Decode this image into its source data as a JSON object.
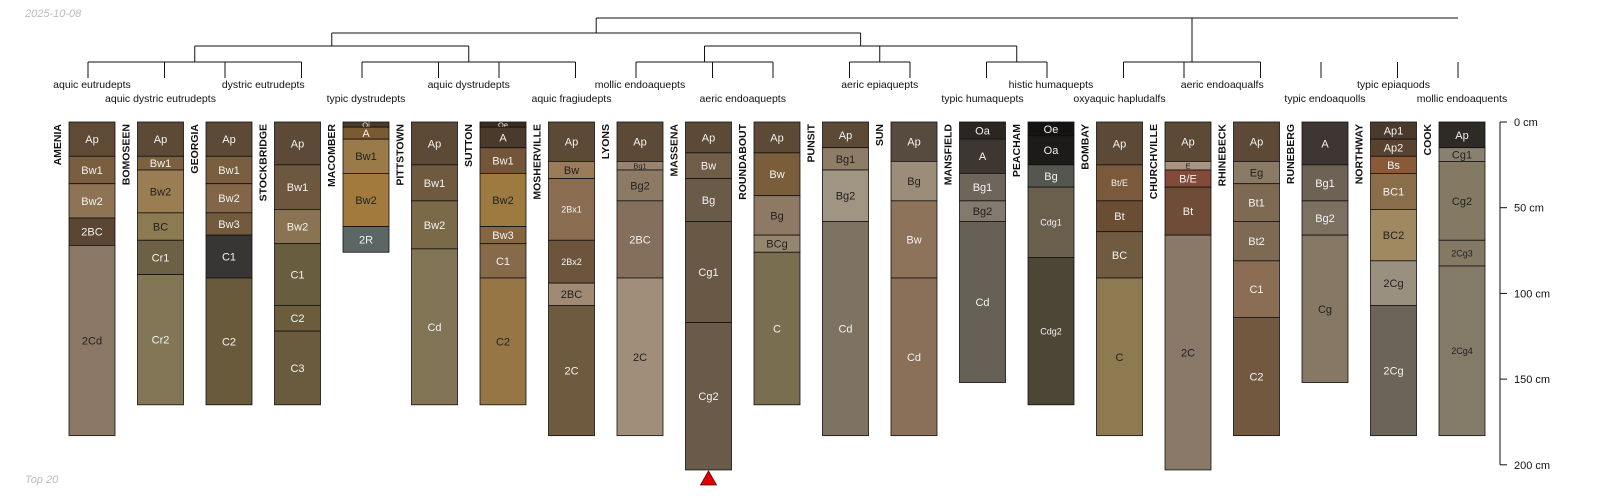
{
  "header": {
    "date": "2025-10-08"
  },
  "footer": {
    "note": "Top 20"
  },
  "chart_data": {
    "type": "soil-profile-sketch",
    "depth_unit": "cm",
    "depth_axis": {
      "range": [
        0,
        200
      ],
      "ticks": [
        0,
        50,
        100,
        150,
        200
      ],
      "tick_labels": [
        "0 cm",
        "50 cm",
        "100 cm",
        "150 cm",
        "200 cm"
      ]
    },
    "truncated_marker": {
      "profile": "MASSENA",
      "color": "#e00000"
    },
    "profiles": [
      {
        "name": "AMENIA",
        "class": "aquic eutrudepts",
        "horizons": [
          {
            "name": "Ap",
            "top": 0,
            "bottom": 20,
            "color": "#5e4a35"
          },
          {
            "name": "Bw1",
            "top": 20,
            "bottom": 36,
            "color": "#7a5e40"
          },
          {
            "name": "Bw2",
            "top": 36,
            "bottom": 56,
            "color": "#8e7355"
          },
          {
            "name": "2BC",
            "top": 56,
            "bottom": 72,
            "color": "#5a4632"
          },
          {
            "name": "2Cd",
            "top": 72,
            "bottom": 183,
            "color": "#8a7765"
          }
        ]
      },
      {
        "name": "BOMOSEEN",
        "class": "aquic dystric eutrudepts",
        "horizons": [
          {
            "name": "Ap",
            "top": 0,
            "bottom": 20,
            "color": "#5c4a36"
          },
          {
            "name": "Bw1",
            "top": 20,
            "bottom": 28,
            "color": "#7c603f"
          },
          {
            "name": "Bw2",
            "top": 28,
            "bottom": 53,
            "color": "#9a7d52"
          },
          {
            "name": "BC",
            "top": 53,
            "bottom": 69,
            "color": "#8c7a50"
          },
          {
            "name": "Cr1",
            "top": 69,
            "bottom": 89,
            "color": "#6c6045"
          },
          {
            "name": "Cr2",
            "top": 89,
            "bottom": 165,
            "color": "#837656"
          }
        ]
      },
      {
        "name": "GEORGIA",
        "class": "dystric eutrudepts",
        "horizons": [
          {
            "name": "Ap",
            "top": 0,
            "bottom": 20,
            "color": "#5c4a36"
          },
          {
            "name": "Bw1",
            "top": 20,
            "bottom": 36,
            "color": "#7a5e40"
          },
          {
            "name": "Bw2",
            "top": 36,
            "bottom": 53,
            "color": "#836648"
          },
          {
            "name": "Bw3",
            "top": 53,
            "bottom": 66,
            "color": "#745a3c"
          },
          {
            "name": "C1",
            "top": 66,
            "bottom": 91,
            "color": "#383635"
          },
          {
            "name": "C2",
            "top": 91,
            "bottom": 165,
            "color": "#6a5a3c"
          }
        ]
      },
      {
        "name": "STOCKBRIDGE",
        "class": "dystric eutrudepts",
        "horizons": [
          {
            "name": "Ap",
            "top": 0,
            "bottom": 25,
            "color": "#5c4a36"
          },
          {
            "name": "Bw1",
            "top": 25,
            "bottom": 51,
            "color": "#6d583f"
          },
          {
            "name": "Bw2",
            "top": 51,
            "bottom": 71,
            "color": "#8a7350"
          },
          {
            "name": "C1",
            "top": 71,
            "bottom": 107,
            "color": "#695d40"
          },
          {
            "name": "C2",
            "top": 107,
            "bottom": 122,
            "color": "#6b5c3e"
          },
          {
            "name": "C3",
            "top": 122,
            "bottom": 165,
            "color": "#6a5b3e"
          }
        ]
      },
      {
        "name": "MACOMBER",
        "class": "typic dystrudepts",
        "horizons": [
          {
            "name": "Oi",
            "top": 0,
            "bottom": 3,
            "color": "#4a3a2a"
          },
          {
            "name": "A",
            "top": 3,
            "bottom": 10,
            "color": "#7a5a30"
          },
          {
            "name": "Bw1",
            "top": 10,
            "bottom": 30,
            "color": "#9a7a48"
          },
          {
            "name": "Bw2",
            "top": 30,
            "bottom": 61,
            "color": "#a37a3d"
          },
          {
            "name": "2R",
            "top": 61,
            "bottom": 76,
            "color": "#5c6664"
          }
        ]
      },
      {
        "name": "PITTSTOWN",
        "class": "aquic dystrudepts",
        "horizons": [
          {
            "name": "Ap",
            "top": 0,
            "bottom": 25,
            "color": "#5c4a36"
          },
          {
            "name": "Bw1",
            "top": 25,
            "bottom": 46,
            "color": "#6f5a3f"
          },
          {
            "name": "Bw2",
            "top": 46,
            "bottom": 74,
            "color": "#7b6a48"
          },
          {
            "name": "Cd",
            "top": 74,
            "bottom": 165,
            "color": "#827556"
          }
        ]
      },
      {
        "name": "SUTTON",
        "class": "aquic dystrudepts",
        "horizons": [
          {
            "name": "Oe",
            "top": 0,
            "bottom": 3,
            "color": "#3a2e24"
          },
          {
            "name": "A",
            "top": 3,
            "bottom": 15,
            "color": "#4a3a2c"
          },
          {
            "name": "Bw1",
            "top": 15,
            "bottom": 30,
            "color": "#74553a"
          },
          {
            "name": "Bw2",
            "top": 30,
            "bottom": 61,
            "color": "#9c7a40"
          },
          {
            "name": "Bw3",
            "top": 61,
            "bottom": 71,
            "color": "#866543"
          },
          {
            "name": "C1",
            "top": 71,
            "bottom": 91,
            "color": "#866a4a"
          },
          {
            "name": "C2",
            "top": 91,
            "bottom": 165,
            "color": "#957644"
          }
        ]
      },
      {
        "name": "MOSHERVILLE",
        "class": "aquic fragiudepts",
        "horizons": [
          {
            "name": "Ap",
            "top": 0,
            "bottom": 23,
            "color": "#5c4a36"
          },
          {
            "name": "Bw",
            "top": 23,
            "bottom": 33,
            "color": "#9a7c58"
          },
          {
            "name": "2Bx1",
            "top": 33,
            "bottom": 69,
            "color": "#8a6d50"
          },
          {
            "name": "2Bx2",
            "top": 69,
            "bottom": 94,
            "color": "#6d553d"
          },
          {
            "name": "2BC",
            "top": 94,
            "bottom": 107,
            "color": "#a08a74"
          },
          {
            "name": "2C",
            "top": 107,
            "bottom": 183,
            "color": "#6e5a3e"
          }
        ]
      },
      {
        "name": "LYONS",
        "class": "mollic endoaquepts",
        "horizons": [
          {
            "name": "Ap",
            "top": 0,
            "bottom": 23,
            "color": "#5c4a36"
          },
          {
            "name": "Bg1",
            "top": 23,
            "bottom": 28,
            "color": "#9a8470"
          },
          {
            "name": "Bg2",
            "top": 28,
            "bottom": 46,
            "color": "#8c7a64"
          },
          {
            "name": "2BC",
            "top": 46,
            "bottom": 91,
            "color": "#846e5c"
          },
          {
            "name": "2C",
            "top": 91,
            "bottom": 183,
            "color": "#a08e7a"
          }
        ]
      },
      {
        "name": "MASSENA",
        "class": "aeric endoaquepts",
        "horizons": [
          {
            "name": "Ap",
            "top": 0,
            "bottom": 18,
            "color": "#5c4a36"
          },
          {
            "name": "Bw",
            "top": 18,
            "bottom": 33,
            "color": "#705d48"
          },
          {
            "name": "Bg",
            "top": 33,
            "bottom": 58,
            "color": "#6a5a48"
          },
          {
            "name": "Cg1",
            "top": 58,
            "bottom": 117,
            "color": "#6a5846"
          },
          {
            "name": "Cg2",
            "top": 117,
            "bottom": 203,
            "color": "#6a5a4a"
          }
        ]
      },
      {
        "name": "ROUNDABOUT",
        "class": "aeric endoaquepts",
        "horizons": [
          {
            "name": "Ap",
            "top": 0,
            "bottom": 18,
            "color": "#5c4a36"
          },
          {
            "name": "Bw",
            "top": 18,
            "bottom": 43,
            "color": "#7a5e3c"
          },
          {
            "name": "Bg",
            "top": 43,
            "bottom": 66,
            "color": "#8e7a64"
          },
          {
            "name": "BCg",
            "top": 66,
            "bottom": 76,
            "color": "#958670"
          },
          {
            "name": "C",
            "top": 76,
            "bottom": 165,
            "color": "#7a6e50"
          }
        ]
      },
      {
        "name": "PUNSIT",
        "class": "aeric epiaquepts",
        "horizons": [
          {
            "name": "Ap",
            "top": 0,
            "bottom": 15,
            "color": "#5c4a36"
          },
          {
            "name": "Bg1",
            "top": 15,
            "bottom": 28,
            "color": "#8e7c66"
          },
          {
            "name": "Bg2",
            "top": 28,
            "bottom": 58,
            "color": "#a09482"
          },
          {
            "name": "Cd",
            "top": 58,
            "bottom": 183,
            "color": "#7e7262"
          }
        ]
      },
      {
        "name": "SUN",
        "class": "aeric epiaquepts",
        "horizons": [
          {
            "name": "Ap",
            "top": 0,
            "bottom": 23,
            "color": "#574a3e"
          },
          {
            "name": "Bg",
            "top": 23,
            "bottom": 46,
            "color": "#9c8c7a"
          },
          {
            "name": "Bw",
            "top": 46,
            "bottom": 91,
            "color": "#8c735a"
          },
          {
            "name": "Cd",
            "top": 91,
            "bottom": 183,
            "color": "#8a7058"
          }
        ]
      },
      {
        "name": "MANSFIELD",
        "class": "typic humaquepts",
        "horizons": [
          {
            "name": "Oa",
            "top": 0,
            "bottom": 10,
            "color": "#2a2622"
          },
          {
            "name": "A",
            "top": 10,
            "bottom": 30,
            "color": "#3e3630"
          },
          {
            "name": "Bg1",
            "top": 30,
            "bottom": 46,
            "color": "#6e665a"
          },
          {
            "name": "Bg2",
            "top": 46,
            "bottom": 58,
            "color": "#827a6e"
          },
          {
            "name": "Cd",
            "top": 58,
            "bottom": 152,
            "color": "#666056"
          }
        ]
      },
      {
        "name": "PEACHAM",
        "class": "histic humaquepts",
        "horizons": [
          {
            "name": "Oe",
            "top": 0,
            "bottom": 8,
            "color": "#151311"
          },
          {
            "name": "Oa",
            "top": 8,
            "bottom": 25,
            "color": "#1d1b19"
          },
          {
            "name": "Bg",
            "top": 25,
            "bottom": 38,
            "color": "#55564f"
          },
          {
            "name": "Cdg1",
            "top": 38,
            "bottom": 79,
            "color": "#6a5e4c"
          },
          {
            "name": "Cdg2",
            "top": 79,
            "bottom": 165,
            "color": "#4c4636"
          }
        ]
      },
      {
        "name": "BOMBAY",
        "class": "oxyaquic hapludalfs",
        "horizons": [
          {
            "name": "Ap",
            "top": 0,
            "bottom": 25,
            "color": "#5c4a36"
          },
          {
            "name": "Bt/E",
            "top": 25,
            "bottom": 46,
            "color": "#7a5a3a"
          },
          {
            "name": "Bt",
            "top": 46,
            "bottom": 64,
            "color": "#6a4d32"
          },
          {
            "name": "BC",
            "top": 64,
            "bottom": 91,
            "color": "#705a40"
          },
          {
            "name": "C",
            "top": 91,
            "bottom": 183,
            "color": "#8e7a50"
          }
        ]
      },
      {
        "name": "CHURCHVILLE",
        "class": "aeric endoaqualfs",
        "horizons": [
          {
            "name": "Ap",
            "top": 0,
            "bottom": 23,
            "color": "#5c4a36"
          },
          {
            "name": "E",
            "top": 23,
            "bottom": 28,
            "color": "#a89480"
          },
          {
            "name": "B/E",
            "top": 28,
            "bottom": 38,
            "color": "#824a38"
          },
          {
            "name": "Bt",
            "top": 38,
            "bottom": 66,
            "color": "#6e4c38"
          },
          {
            "name": "2C",
            "top": 66,
            "bottom": 203,
            "color": "#8a7868"
          }
        ]
      },
      {
        "name": "RHINEBECK",
        "class": "aeric endoaqualfs",
        "horizons": [
          {
            "name": "Ap",
            "top": 0,
            "bottom": 23,
            "color": "#5c4a36"
          },
          {
            "name": "Eg",
            "top": 23,
            "bottom": 36,
            "color": "#8a7a66"
          },
          {
            "name": "Bt1",
            "top": 36,
            "bottom": 58,
            "color": "#7e6a52"
          },
          {
            "name": "Bt2",
            "top": 58,
            "bottom": 81,
            "color": "#7e6a52"
          },
          {
            "name": "C1",
            "top": 81,
            "bottom": 114,
            "color": "#8a6d52"
          },
          {
            "name": "C2",
            "top": 114,
            "bottom": 183,
            "color": "#72583e"
          }
        ]
      },
      {
        "name": "RUNEBERG",
        "class": "typic endoaquolls",
        "horizons": [
          {
            "name": "A",
            "top": 0,
            "bottom": 25,
            "color": "#3e3632"
          },
          {
            "name": "Bg1",
            "top": 25,
            "bottom": 46,
            "color": "#6e6254"
          },
          {
            "name": "Bg2",
            "top": 46,
            "bottom": 66,
            "color": "#7c7060"
          },
          {
            "name": "Cg",
            "top": 66,
            "bottom": 152,
            "color": "#867864"
          }
        ]
      },
      {
        "name": "NORTHWAY",
        "class": "typic epiaquods",
        "horizons": [
          {
            "name": "Ap1",
            "top": 0,
            "bottom": 10,
            "color": "#4a3a2c"
          },
          {
            "name": "Ap2",
            "top": 10,
            "bottom": 20,
            "color": "#5a4230"
          },
          {
            "name": "Bs",
            "top": 20,
            "bottom": 30,
            "color": "#8a5a38"
          },
          {
            "name": "BC1",
            "top": 30,
            "bottom": 51,
            "color": "#8a6e4c"
          },
          {
            "name": "BC2",
            "top": 51,
            "bottom": 81,
            "color": "#a08860"
          },
          {
            "name": "2Cg",
            "top": 81,
            "bottom": 107,
            "color": "#9a9080"
          },
          {
            "name": "2Cg",
            "top": 107,
            "bottom": 183,
            "color": "#6c6458"
          }
        ]
      },
      {
        "name": "COOK",
        "class": "mollic endoaquents",
        "horizons": [
          {
            "name": "Ap",
            "top": 0,
            "bottom": 15,
            "color": "#2e2a26"
          },
          {
            "name": "Cg1",
            "top": 15,
            "bottom": 23,
            "color": "#8a8070"
          },
          {
            "name": "Cg2",
            "top": 23,
            "bottom": 69,
            "color": "#847a64"
          },
          {
            "name": "2Cg3",
            "top": 69,
            "bottom": 84,
            "color": "#847a64"
          },
          {
            "name": "2Cg4",
            "top": 84,
            "bottom": 183,
            "color": "#847a68"
          }
        ]
      }
    ]
  }
}
